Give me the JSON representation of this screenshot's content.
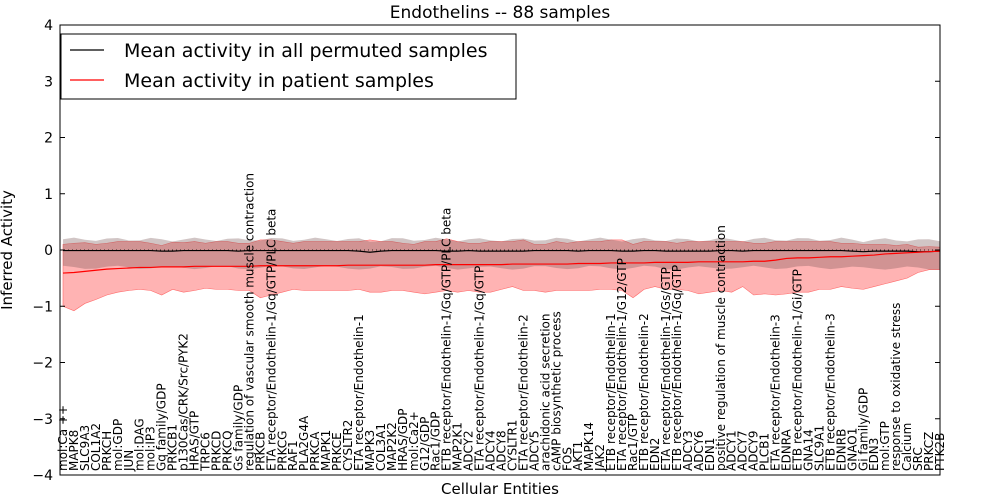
{
  "chart_data": {
    "type": "line",
    "title": "Endothelins -- 88 samples",
    "xlabel": "Cellular Entities",
    "ylabel": "Inferred Activity",
    "ylim": [
      -4,
      4
    ],
    "yticks": [
      -4,
      -3,
      -2,
      -1,
      0,
      1,
      2,
      3,
      4
    ],
    "legend_position": "top-left",
    "categories": [
      "mol:Ca ++",
      "MAPK8",
      "SLC9A3",
      "COL1A2",
      "PRKCH",
      "mol:GDP",
      "JUN",
      "mol:DAG",
      "mol:IP3",
      "Gq family/GDP",
      "PRKCB1",
      "p130Cas/CRK/Src/PYK2",
      "HRAS/GTP",
      "TRPC6",
      "PRKCD",
      "PRKCQ",
      "Gs family/GDP",
      "regulation of vascular smooth muscle contraction",
      "PRKCB",
      "ETA receptor/Endothelin-1/Gq/GTP/PLC beta",
      "PRKCG",
      "RAF1",
      "PLA2G4A",
      "PRKCA",
      "MAPK1",
      "PRKCE",
      "CYSLTR2",
      "ETA receptor/Endothelin-1",
      "MAPK3",
      "COL3A1",
      "MAP2K2",
      "HRAS/GDP",
      "mol:Ca2+",
      "G12/GDP",
      "Rac1/GDP",
      "ETB receptor/Endothelin-1/Gq/GTP/PLC beta",
      "MAP2K1",
      "ADCY2",
      "ETA receptor/Endothelin-1/Gq/GTP",
      "ADCY4",
      "ADCY8",
      "CYSLTR1",
      "ETA receptor/Endothelin-2",
      "ADCY5",
      "arachidonic acid secretion",
      "cAMP biosynthetic process",
      "FOS",
      "AKT1",
      "MAPK14",
      "JAK2",
      "ETB receptor/Endothelin-1",
      "ETA receptor/Endothelin-1/G12/GTP",
      "Rac1/GTP",
      "ETB receptor/Endothelin-2",
      "EDN2",
      "ETA receptor/Endothelin-1/Gs/GTP",
      "ETB receptor/Endothelin-1/Gq/GTP",
      "ADCY3",
      "ADCY6",
      "EDN1",
      "positive regulation of muscle contraction",
      "ADCY1",
      "ADCY7",
      "ADCY9",
      "PLCB1",
      "ETA receptor/Endothelin-3",
      "EDNRA",
      "ETB receptor/Endothelin-1/Gi/GTP",
      "GNA14",
      "SLC9A1",
      "ETB receptor/Endothelin-3",
      "EDNRB",
      "GNAO1",
      "Gi family/GDP",
      "EDN3",
      "mol:GTP",
      "response to oxidative stress",
      "Calcium",
      "SRC",
      "PRKCZ",
      "PTK2B"
    ],
    "series": [
      {
        "name": "Mean activity in all permuted samples",
        "color": "#000000",
        "values": [
          -0.01,
          -0.01,
          -0.01,
          -0.01,
          -0.01,
          -0.01,
          -0.01,
          -0.01,
          -0.01,
          -0.02,
          -0.02,
          -0.01,
          -0.01,
          -0.01,
          -0.01,
          -0.01,
          -0.02,
          -0.01,
          -0.01,
          -0.01,
          -0.01,
          -0.01,
          -0.01,
          -0.01,
          -0.01,
          -0.01,
          -0.01,
          -0.02,
          -0.04,
          -0.02,
          -0.01,
          -0.01,
          -0.01,
          -0.01,
          -0.01,
          -0.02,
          -0.02,
          -0.01,
          -0.02,
          -0.02,
          -0.02,
          -0.02,
          -0.02,
          -0.01,
          -0.01,
          -0.01,
          -0.01,
          -0.02,
          -0.01,
          -0.01,
          -0.01,
          -0.02,
          -0.02,
          -0.01,
          -0.01,
          -0.02,
          -0.02,
          -0.02,
          -0.02,
          -0.02,
          -0.01,
          -0.01,
          -0.02,
          -0.01,
          -0.01,
          -0.01,
          -0.01,
          -0.01,
          -0.01,
          -0.01,
          -0.01,
          -0.01,
          -0.02,
          -0.03,
          -0.02,
          -0.02,
          -0.02,
          -0.02,
          -0.03,
          -0.03,
          -0.02
        ],
        "band": [
          0.2,
          0.3
        ]
      },
      {
        "name": "Mean activity in patient samples",
        "color": "#ff0000",
        "band_color": "#ff9a9a",
        "values": [
          -0.41,
          -0.4,
          -0.38,
          -0.36,
          -0.34,
          -0.33,
          -0.32,
          -0.31,
          -0.31,
          -0.3,
          -0.3,
          -0.3,
          -0.29,
          -0.29,
          -0.29,
          -0.29,
          -0.29,
          -0.29,
          -0.28,
          -0.28,
          -0.28,
          -0.28,
          -0.28,
          -0.28,
          -0.28,
          -0.28,
          -0.27,
          -0.27,
          -0.27,
          -0.27,
          -0.27,
          -0.27,
          -0.27,
          -0.27,
          -0.26,
          -0.26,
          -0.26,
          -0.26,
          -0.26,
          -0.26,
          -0.26,
          -0.25,
          -0.25,
          -0.25,
          -0.25,
          -0.25,
          -0.25,
          -0.24,
          -0.24,
          -0.24,
          -0.23,
          -0.23,
          -0.23,
          -0.23,
          -0.22,
          -0.22,
          -0.22,
          -0.22,
          -0.21,
          -0.21,
          -0.21,
          -0.21,
          -0.21,
          -0.2,
          -0.2,
          -0.18,
          -0.15,
          -0.14,
          -0.14,
          -0.13,
          -0.12,
          -0.12,
          -0.11,
          -0.1,
          -0.09,
          -0.07,
          -0.06,
          -0.05,
          -0.04,
          -0.03,
          -0.02
        ],
        "upper": [
          0.1,
          0.12,
          0.13,
          0.1,
          0.12,
          0.15,
          0.15,
          0.15,
          0.12,
          0.08,
          0.14,
          0.13,
          0.15,
          0.12,
          0.15,
          0.15,
          0.12,
          0.12,
          0.18,
          0.18,
          0.15,
          0.12,
          0.15,
          0.15,
          0.15,
          0.15,
          0.15,
          0.15,
          0.18,
          0.15,
          0.15,
          0.12,
          0.1,
          0.15,
          0.15,
          0.2,
          0.15,
          0.12,
          0.12,
          0.15,
          0.15,
          0.15,
          0.18,
          0.1,
          0.1,
          0.15,
          0.12,
          0.15,
          0.15,
          0.15,
          0.18,
          0.18,
          0.1,
          0.15,
          0.15,
          0.15,
          0.12,
          0.15,
          0.15,
          0.15,
          0.15,
          0.15,
          0.15,
          0.12,
          0.12,
          0.15,
          0.15,
          0.15,
          0.15,
          0.15,
          0.15,
          0.12,
          0.12,
          0.1,
          0.1,
          0.1,
          0.08,
          0.1,
          0.05,
          0.06,
          0.05
        ],
        "lower": [
          -1.0,
          -1.08,
          -0.95,
          -0.88,
          -0.8,
          -0.75,
          -0.72,
          -0.7,
          -0.72,
          -0.8,
          -0.7,
          -0.75,
          -0.72,
          -0.68,
          -0.7,
          -0.7,
          -0.72,
          -0.72,
          -0.85,
          -0.8,
          -0.75,
          -0.7,
          -0.72,
          -0.72,
          -0.72,
          -0.72,
          -0.72,
          -0.7,
          -0.75,
          -0.75,
          -0.72,
          -0.72,
          -0.75,
          -0.78,
          -0.75,
          -0.72,
          -0.75,
          -0.72,
          -0.75,
          -0.75,
          -0.7,
          -0.65,
          -0.72,
          -0.72,
          -0.75,
          -0.72,
          -0.72,
          -0.72,
          -0.72,
          -0.7,
          -0.7,
          -0.72,
          -0.85,
          -0.7,
          -0.65,
          -0.7,
          -0.7,
          -0.72,
          -0.78,
          -0.75,
          -0.72,
          -0.75,
          -0.65,
          -0.8,
          -0.78,
          -0.8,
          -0.78,
          -0.75,
          -0.75,
          -0.7,
          -0.7,
          -0.65,
          -0.68,
          -0.7,
          -0.65,
          -0.6,
          -0.55,
          -0.5,
          -0.4,
          -0.35,
          -0.35
        ]
      }
    ]
  }
}
